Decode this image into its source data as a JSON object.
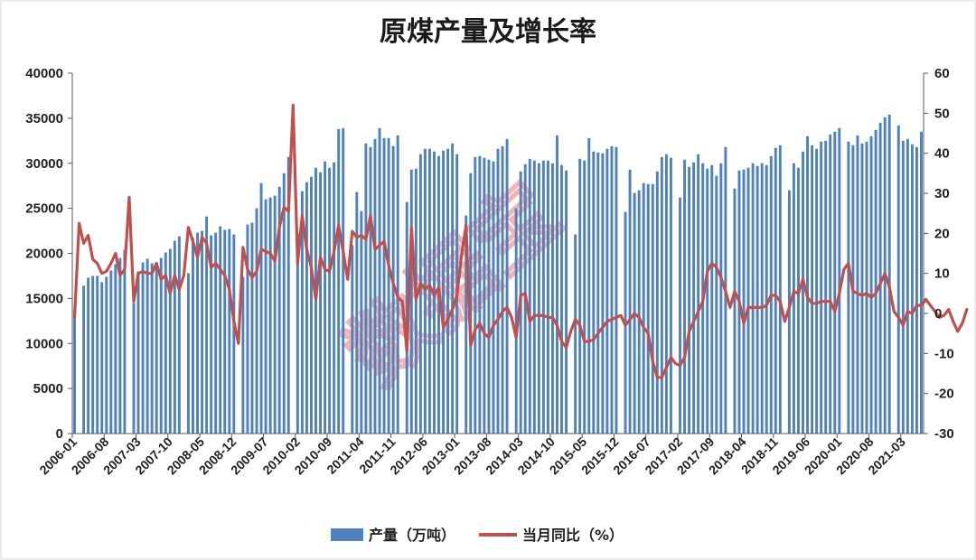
{
  "watermark": "数据宝",
  "chart_data": {
    "type": "bar+line",
    "title": "原煤产量及增长率",
    "xlabel": "",
    "ylabel": "",
    "y_left_lim": [
      0,
      40000
    ],
    "y_left_ticks": [
      "0",
      "5000",
      "10000",
      "15000",
      "20000",
      "25000",
      "30000",
      "35000",
      "40000"
    ],
    "y_right_lim": [
      -30,
      60
    ],
    "y_right_ticks": [
      "-30",
      "-20",
      "-10",
      "0",
      "10",
      "20",
      "30",
      "40",
      "50",
      "60"
    ],
    "grid": false,
    "legend_position": "bottom",
    "x_range": [
      "2006-01",
      "2021-07"
    ],
    "x_tick_labels": [
      "2006-01",
      "2006-08",
      "2007-03",
      "2007-10",
      "2008-05",
      "2008-12",
      "2009-07",
      "2010-02",
      "2010-09",
      "2011-04",
      "2011-11",
      "2012-06",
      "2013-01",
      "2013-08",
      "2014-03",
      "2014-10",
      "2015-05",
      "2015-12",
      "2016-07",
      "2017-02",
      "2017-09",
      "2018-04",
      "2018-11",
      "2019-06",
      "2020-01",
      "2020-08",
      "2021-03"
    ],
    "missing_bars": [
      "2006-02",
      "2007-01",
      "2008-01",
      "2009-01",
      "2010-01",
      "2011-01",
      "2012-01",
      "2013-02",
      "2014-01",
      "2015-02",
      "2016-01",
      "2017-01",
      "2018-01",
      "2019-01",
      "2020-02",
      "2021-02"
    ],
    "series": [
      {
        "name": "产量（万吨）",
        "type": "bar",
        "axis": "left",
        "color": "#4f81bd",
        "values": [
          13700,
          null,
          16400,
          17300,
          17500,
          17500,
          16800,
          17400,
          18100,
          18800,
          19500,
          20400,
          null,
          14500,
          18000,
          19000,
          19400,
          18900,
          18400,
          19500,
          20100,
          20500,
          21400,
          21900,
          null,
          17800,
          21700,
          22300,
          22500,
          24100,
          22000,
          22300,
          23000,
          22600,
          22700,
          22100,
          null,
          17400,
          23200,
          23400,
          25000,
          27800,
          26000,
          26200,
          26400,
          27400,
          28900,
          30700,
          null,
          22200,
          26900,
          27900,
          28500,
          29500,
          29000,
          30200,
          29500,
          30100,
          33800,
          33900,
          null,
          20900,
          26800,
          24700,
          32200,
          31800,
          32700,
          33900,
          32800,
          32800,
          31900,
          33100,
          null,
          25700,
          29300,
          29400,
          31000,
          31600,
          31600,
          31300,
          30800,
          31400,
          31600,
          32200,
          31000,
          null,
          24200,
          28900,
          30700,
          30800,
          30600,
          30400,
          30200,
          31600,
          31900,
          32700,
          null,
          25000,
          29100,
          29900,
          30500,
          30300,
          30000,
          30300,
          30300,
          30000,
          33100,
          29800,
          29200,
          null,
          22100,
          30500,
          30300,
          32800,
          31300,
          31200,
          31100,
          31600,
          31900,
          31800,
          null,
          24600,
          29300,
          26700,
          27000,
          27800,
          27700,
          27700,
          29100,
          30700,
          31000,
          30600,
          null,
          26200,
          30400,
          29600,
          30100,
          31000,
          30000,
          29400,
          29800,
          28600,
          30000,
          31800,
          null,
          27200,
          29200,
          29300,
          29500,
          30000,
          29700,
          30000,
          29800,
          30800,
          31700,
          32000,
          null,
          27000,
          30000,
          29500,
          31300,
          33000,
          32000,
          31600,
          32400,
          32500,
          33200,
          33500,
          33900,
          null,
          32400,
          32000,
          33100,
          32200,
          32400,
          33000,
          33700,
          34500,
          35100,
          35400,
          null,
          34200,
          32500,
          32700,
          32100,
          31800,
          33500
        ]
      },
      {
        "name": "当月同比（%）",
        "type": "line",
        "axis": "right",
        "color": "#c0504d",
        "values": [
          -1.0,
          22.5,
          17.5,
          19.5,
          13.5,
          12.5,
          10.0,
          10.5,
          12.5,
          15.0,
          9.5,
          11.0,
          29.0,
          3.0,
          10.0,
          10.5,
          10.0,
          10.0,
          12.5,
          8.5,
          9.5,
          5.0,
          9.5,
          6.0,
          9.5,
          21.5,
          18.0,
          14.0,
          19.0,
          17.5,
          11.5,
          12.5,
          11.0,
          9.5,
          6.0,
          -2.0,
          -7.5,
          16.5,
          11.0,
          9.0,
          10.5,
          16.0,
          15.5,
          15.0,
          13.0,
          21.5,
          26.5,
          25.5,
          52.0,
          12.5,
          24.5,
          16.0,
          11.5,
          3.5,
          14.0,
          11.0,
          10.5,
          15.5,
          22.0,
          15.5,
          8.5,
          20.5,
          19.0,
          19.5,
          18.5,
          24.5,
          16.0,
          17.0,
          18.0,
          12.0,
          7.5,
          4.0,
          3.0,
          -9.5,
          21.5,
          3.5,
          7.5,
          6.0,
          7.0,
          4.5,
          6.5,
          -3.5,
          -1.5,
          1.0,
          4.5,
          14.5,
          22.0,
          -8.0,
          -4.0,
          -2.5,
          -5.0,
          -6.0,
          -3.0,
          -1.5,
          0.5,
          1.5,
          -1.0,
          -6.0,
          4.5,
          5.0,
          -2.0,
          -0.5,
          -0.5,
          -0.5,
          -1.0,
          -1.0,
          -3.0,
          -7.0,
          -8.5,
          -4.5,
          -1.5,
          -3.0,
          -7.0,
          -7.0,
          -6.5,
          -5.0,
          -3.5,
          -2.0,
          -1.5,
          -1.0,
          -0.5,
          -3.0,
          -1.5,
          0.0,
          -1.0,
          -3.5,
          -5.0,
          -12.0,
          -16.0,
          -16.0,
          -13.5,
          -11.0,
          -12.5,
          -13.0,
          -11.0,
          -4.5,
          -2.0,
          0.5,
          3.0,
          10.5,
          12.5,
          11.5,
          9.0,
          5.5,
          1.5,
          5.5,
          3.0,
          -2.5,
          1.5,
          1.5,
          1.5,
          1.5,
          2.0,
          4.5,
          4.5,
          3.0,
          -2.0,
          1.5,
          5.5,
          5.0,
          8.5,
          4.0,
          2.5,
          2.5,
          3.0,
          3.0,
          3.0,
          0.5,
          5.0,
          11.0,
          12.5,
          5.5,
          5.0,
          4.5,
          5.0,
          4.0,
          5.0,
          7.5,
          10.0,
          6.5,
          0.5,
          -1.0,
          -3.0,
          0.5,
          0.0,
          2.0,
          2.0,
          3.5,
          2.0,
          0.5,
          -1.0,
          -0.5,
          1.0,
          -2.0,
          -4.5,
          -2.5,
          1.0
        ]
      }
    ]
  }
}
